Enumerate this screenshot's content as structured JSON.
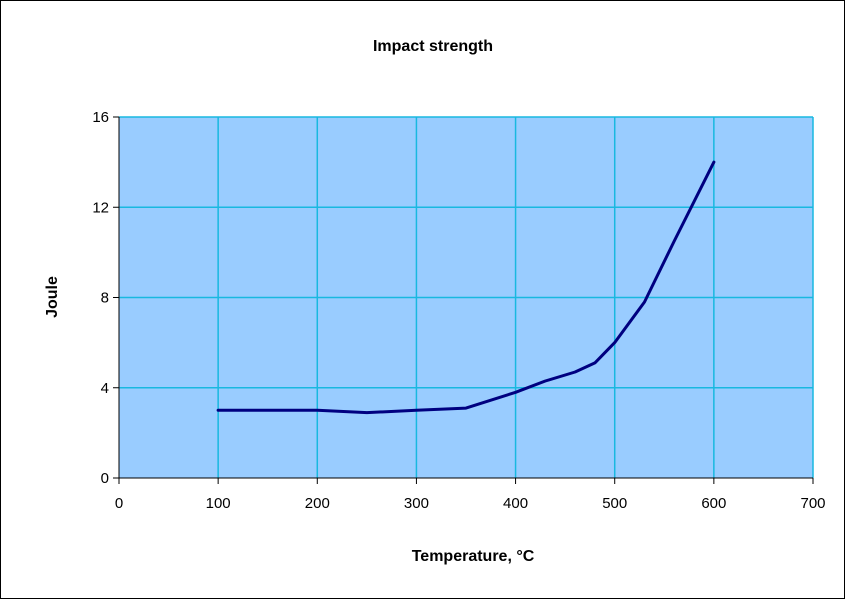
{
  "chart_data": {
    "type": "line",
    "title": "Impact strength",
    "xlabel": "Temperature, °C",
    "ylabel": "Joule",
    "xlim": [
      0,
      700
    ],
    "ylim": [
      0,
      16
    ],
    "x_ticks": [
      0,
      100,
      200,
      300,
      400,
      500,
      600,
      700
    ],
    "y_ticks": [
      0,
      4,
      8,
      12,
      16
    ],
    "grid": true,
    "legend": "none",
    "colors": {
      "plot_background": "#99ccff",
      "gridline": "#18b8e0",
      "line": "#000080",
      "frame": "#000000"
    },
    "series": [
      {
        "x": [
          100,
          150,
          200,
          250,
          300,
          350,
          400,
          430,
          460,
          480,
          500,
          530,
          560,
          600
        ],
        "y": [
          3.0,
          3.0,
          3.0,
          2.9,
          3.0,
          3.1,
          3.8,
          4.3,
          4.7,
          5.1,
          6.0,
          7.8,
          10.5,
          14.0
        ]
      }
    ]
  }
}
